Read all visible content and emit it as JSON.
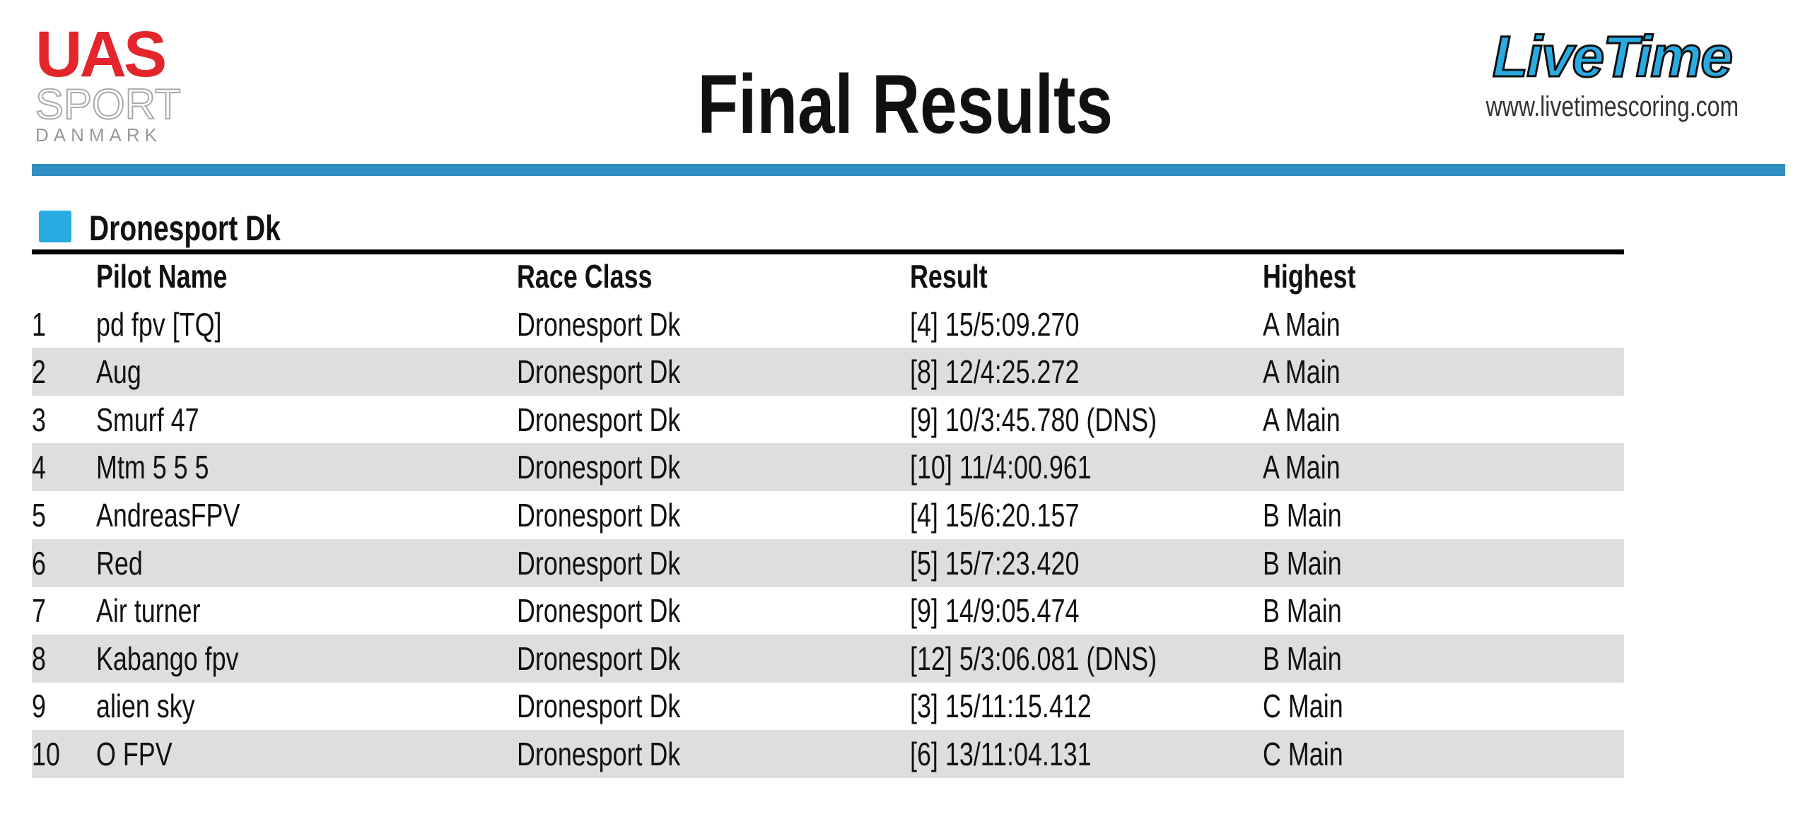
{
  "header": {
    "logo_left": {
      "line1": "UAS",
      "line2": "SPORT",
      "line3": "DANMARK"
    },
    "title": "Final Results",
    "logo_right": {
      "brand": "LiveTime",
      "url": "www.livetimescoring.com"
    }
  },
  "section": {
    "title": "Dronesport Dk"
  },
  "table": {
    "columns": [
      "",
      "Pilot Name",
      "Race Class",
      "Result",
      "Highest"
    ],
    "rows": [
      [
        "1",
        "pd fpv [TQ]",
        "Dronesport Dk",
        "[4] 15/5:09.270",
        "A Main"
      ],
      [
        "2",
        "Aug",
        "Dronesport Dk",
        "[8] 12/4:25.272",
        "A Main"
      ],
      [
        "3",
        "Smurf 47",
        "Dronesport Dk",
        "[9] 10/3:45.780 (DNS)",
        "A Main"
      ],
      [
        "4",
        "Mtm 5 5 5",
        "Dronesport Dk",
        "[10] 11/4:00.961",
        "A Main"
      ],
      [
        "5",
        "AndreasFPV",
        "Dronesport Dk",
        "[4] 15/6:20.157",
        "B Main"
      ],
      [
        "6",
        "Red",
        "Dronesport Dk",
        "[5] 15/7:23.420",
        "B Main"
      ],
      [
        "7",
        "Air turner",
        "Dronesport Dk",
        "[9] 14/9:05.474",
        "B Main"
      ],
      [
        "8",
        "Kabango fpv",
        "Dronesport Dk",
        "[12] 5/3:06.081 (DNS)",
        "B Main"
      ],
      [
        "9",
        "alien sky",
        "Dronesport Dk",
        "[3] 15/11:15.412",
        "C Main"
      ],
      [
        "10",
        "O FPV",
        "Dronesport Dk",
        "[6] 13/11:04.131",
        "C Main"
      ]
    ]
  }
}
